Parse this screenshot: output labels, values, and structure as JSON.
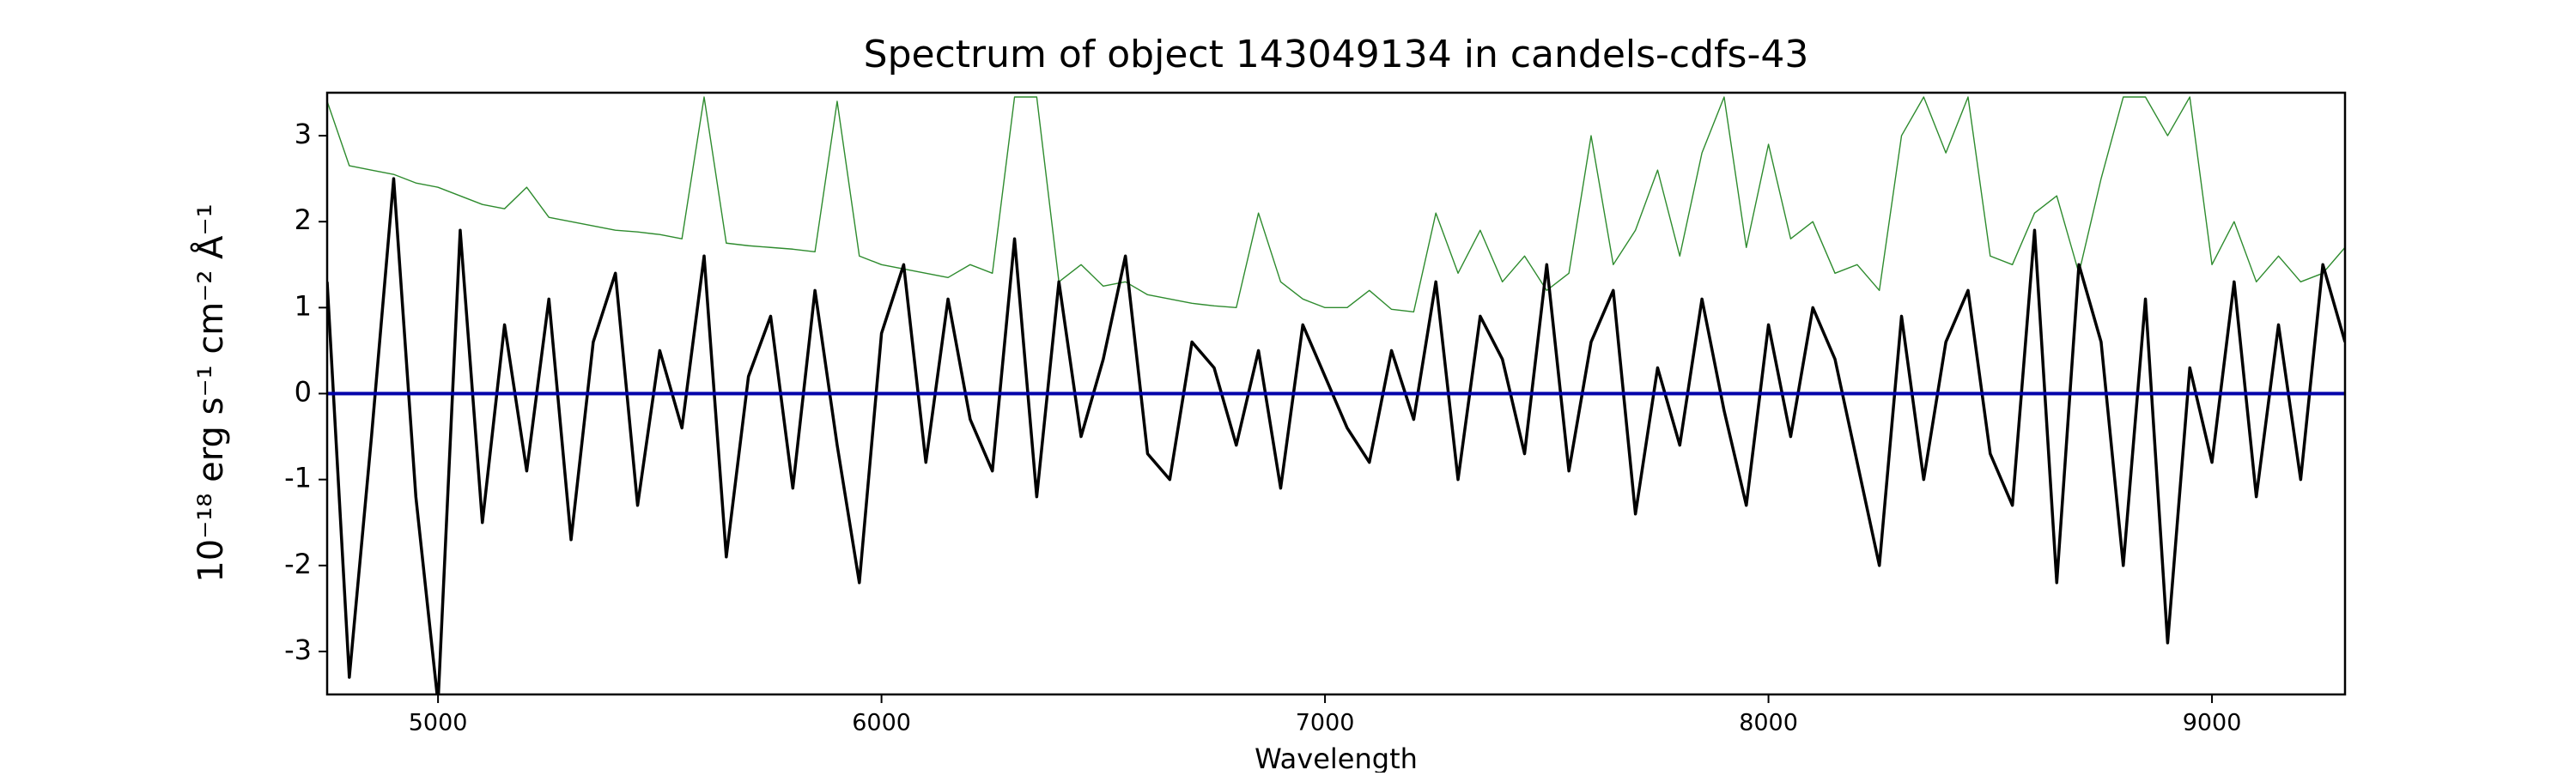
{
  "chart_data": {
    "type": "line",
    "title": "Spectrum of object 143049134 in candels-cdfs-43",
    "x_label": "Wavelength",
    "y_label": "10⁻¹⁸ erg s⁻¹ cm⁻² Å⁻¹",
    "x": [
      4750,
      4800,
      4850,
      4900,
      4950,
      5000,
      5050,
      5100,
      5150,
      5200,
      5250,
      5300,
      5350,
      5400,
      5450,
      5500,
      5550,
      5600,
      5650,
      5700,
      5750,
      5800,
      5850,
      5900,
      5950,
      6000,
      6050,
      6100,
      6150,
      6200,
      6250,
      6300,
      6350,
      6400,
      6450,
      6500,
      6550,
      6600,
      6650,
      6700,
      6750,
      6800,
      6850,
      6900,
      6950,
      7000,
      7050,
      7100,
      7150,
      7200,
      7250,
      7300,
      7350,
      7400,
      7450,
      7500,
      7550,
      7600,
      7650,
      7700,
      7750,
      7800,
      7850,
      7900,
      7950,
      8000,
      8050,
      8100,
      8150,
      8200,
      8250,
      8300,
      8350,
      8400,
      8450,
      8500,
      8550,
      8600,
      8650,
      8700,
      8750,
      8800,
      8850,
      8900,
      8950,
      9000,
      9050,
      9100,
      9150,
      9200,
      9250,
      9300
    ],
    "series": [
      {
        "color": "#2e8b2e",
        "width": 1.4,
        "values": [
          3.4,
          2.65,
          2.6,
          2.55,
          2.45,
          2.4,
          2.3,
          2.2,
          2.15,
          2.4,
          2.05,
          2.0,
          1.95,
          1.9,
          1.88,
          1.85,
          1.8,
          3.45,
          1.75,
          1.72,
          1.7,
          1.68,
          1.65,
          3.4,
          1.6,
          1.5,
          1.45,
          1.4,
          1.35,
          1.5,
          1.4,
          3.45,
          3.45,
          1.3,
          1.5,
          1.25,
          1.3,
          1.15,
          1.1,
          1.05,
          1.02,
          1.0,
          2.1,
          1.3,
          1.1,
          1.0,
          1.0,
          1.2,
          0.98,
          0.95,
          2.1,
          1.4,
          1.9,
          1.3,
          1.6,
          1.2,
          1.4,
          3.0,
          1.5,
          1.9,
          2.6,
          1.6,
          2.8,
          3.45,
          1.7,
          2.9,
          1.8,
          2.0,
          1.4,
          1.5,
          1.2,
          3.0,
          3.45,
          2.8,
          3.45,
          1.6,
          1.5,
          2.1,
          2.3,
          1.4,
          2.5,
          3.45,
          3.45,
          3.0,
          3.45,
          1.5,
          2.0,
          1.3,
          1.6,
          1.3,
          1.4,
          1.7
        ]
      },
      {
        "color": "#000000",
        "width": 3.5,
        "values": [
          1.3,
          -3.3,
          -0.5,
          2.5,
          -1.2,
          -3.6,
          1.9,
          -1.5,
          0.8,
          -0.9,
          1.1,
          -1.7,
          0.6,
          1.4,
          -1.3,
          0.5,
          -0.4,
          1.6,
          -1.9,
          0.2,
          0.9,
          -1.1,
          1.2,
          -0.6,
          -2.2,
          0.7,
          1.5,
          -0.8,
          1.1,
          -0.3,
          -0.9,
          1.8,
          -1.2,
          1.3,
          -0.5,
          0.4,
          1.6,
          -0.7,
          -1.0,
          0.6,
          0.3,
          -0.6,
          0.5,
          -1.1,
          0.8,
          0.2,
          -0.4,
          -0.8,
          0.5,
          -0.3,
          1.3,
          -1.0,
          0.9,
          0.4,
          -0.7,
          1.5,
          -0.9,
          0.6,
          1.2,
          -1.4,
          0.3,
          -0.6,
          1.1,
          -0.2,
          -1.3,
          0.8,
          -0.5,
          1.0,
          0.4,
          -0.8,
          -2.0,
          0.9,
          -1.0,
          0.6,
          1.2,
          -0.7,
          -1.3,
          1.9,
          -2.2,
          1.5,
          0.6,
          -2.0,
          1.1,
          -2.9,
          0.3,
          -0.8,
          1.3,
          -1.2,
          0.8,
          -1.0,
          1.5,
          0.6
        ]
      },
      {
        "color": "#0000aa",
        "width": 4,
        "values": [
          0,
          0,
          0,
          0,
          0,
          0,
          0,
          0,
          0,
          0,
          0,
          0,
          0,
          0,
          0,
          0,
          0,
          0,
          0,
          0,
          0,
          0,
          0,
          0,
          0,
          0,
          0,
          0,
          0,
          0,
          0,
          0,
          0,
          0,
          0,
          0,
          0,
          0,
          0,
          0,
          0,
          0,
          0,
          0,
          0,
          0,
          0,
          0,
          0,
          0,
          0,
          0,
          0,
          0,
          0,
          0,
          0,
          0,
          0,
          0,
          0,
          0,
          0,
          0,
          0,
          0,
          0,
          0,
          0,
          0,
          0,
          0,
          0,
          0,
          0,
          0,
          0,
          0,
          0,
          0,
          0,
          0,
          0,
          0,
          0,
          0,
          0,
          0,
          0,
          0,
          0,
          0
        ]
      }
    ],
    "xlim": [
      4750,
      9300
    ],
    "ylim": [
      -3.5,
      3.5
    ],
    "xticks": [
      5000,
      6000,
      7000,
      8000,
      9000
    ],
    "yticks": [
      -3,
      -2,
      -1,
      0,
      1,
      2,
      3
    ]
  }
}
